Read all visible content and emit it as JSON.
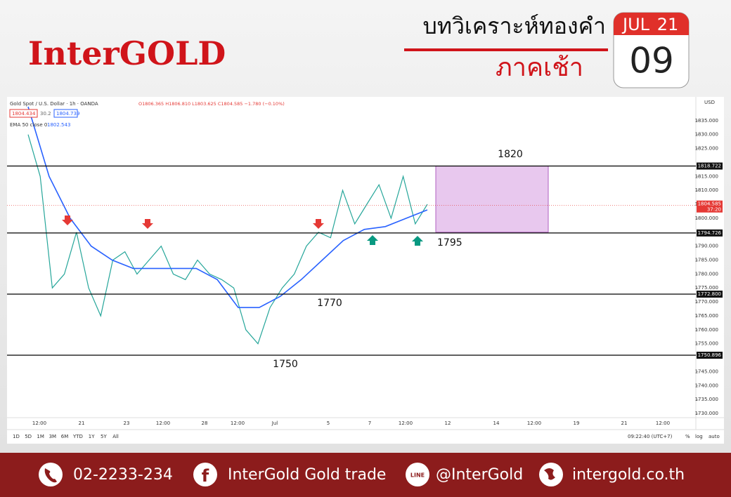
{
  "header": {
    "brand": "InterGOLD",
    "title": "บทวิเคราะห์ทองคำ",
    "subtitle": "ภาคเช้า",
    "calendar": {
      "month": "JUL",
      "year": "21",
      "day": "09"
    }
  },
  "chart_data": {
    "type": "line",
    "symbol": "Gold Spot / U.S. Dollar · 1h · OANDA",
    "ohlc": "O1806.365 H1806.810 L1803.625 C1804.585 −1.780 (−0.10%)",
    "bid": "1804.434",
    "spread": "30.2",
    "ask": "1804.739",
    "indicator": "EMA 50 close 0",
    "indicator_value": "1802.543",
    "currency": "USD",
    "series": [
      {
        "name": "Gold Spot",
        "color": "#26a69a",
        "values": [
          1830,
          1815,
          1775,
          1780,
          1795,
          1775,
          1765,
          1785,
          1788,
          1780,
          1785,
          1790,
          1780,
          1778,
          1785,
          1780,
          1778,
          1775,
          1760,
          1755,
          1768,
          1775,
          1780,
          1790,
          1795,
          1793,
          1810,
          1798,
          1805,
          1812,
          1800,
          1815,
          1798,
          1805
        ]
      },
      {
        "name": "EMA 50",
        "color": "#2962ff",
        "values": [
          1840,
          1815,
          1800,
          1790,
          1785,
          1782,
          1782,
          1782,
          1782,
          1778,
          1768,
          1768,
          1772,
          1778,
          1785,
          1792,
          1796,
          1797,
          1800,
          1803
        ]
      }
    ],
    "ylim": [
      1728.5,
      1840.5
    ],
    "yticks": [
      {
        "value": 1730,
        "label": "1730.000"
      },
      {
        "value": 1735,
        "label": "1735.000"
      },
      {
        "value": 1740,
        "label": "1740.000"
      },
      {
        "value": 1745,
        "label": "1745.000"
      },
      {
        "value": 1755,
        "label": "1755.000"
      },
      {
        "value": 1760,
        "label": "1760.000"
      },
      {
        "value": 1765,
        "label": "1765.000"
      },
      {
        "value": 1770,
        "label": "1770.000"
      },
      {
        "value": 1775,
        "label": "1775.000"
      },
      {
        "value": 1780,
        "label": "1780.000"
      },
      {
        "value": 1785,
        "label": "1785.000"
      },
      {
        "value": 1790,
        "label": "1790.000"
      },
      {
        "value": 1800,
        "label": "1800.000"
      },
      {
        "value": 1805,
        "label": "1805.000"
      },
      {
        "value": 1810,
        "label": "1810.000"
      },
      {
        "value": 1815,
        "label": "1815.000"
      },
      {
        "value": 1825,
        "label": "1825.000"
      },
      {
        "value": 1830,
        "label": "1830.000"
      },
      {
        "value": 1835,
        "label": "1835.000"
      }
    ],
    "xticks": [
      "12:00",
      "21",
      "23",
      "12:00",
      "28",
      "12:00",
      "Jul",
      "5",
      "7",
      "12:00",
      "12",
      "14",
      "12:00",
      "19",
      "21",
      "12:00"
    ],
    "levels": [
      {
        "value": 1818.722,
        "label": "1818.722"
      },
      {
        "value": 1794.726,
        "label": "1794.726"
      },
      {
        "value": 1772.8,
        "label": "1772.800"
      },
      {
        "value": 1750.896,
        "label": "1750.896"
      }
    ],
    "current_price": {
      "value": 1804.585,
      "label": "1804.585",
      "countdown": "37:20"
    },
    "zone": {
      "low": 1795,
      "high": 1818.722,
      "color": "#e8c8ee"
    },
    "annotations": [
      "1820",
      "1795",
      "1770",
      "1750"
    ],
    "toolbar": [
      "1D",
      "5D",
      "1M",
      "3M",
      "6M",
      "YTD",
      "1Y",
      "5Y",
      "All"
    ],
    "clock": "09:22:40 (UTC+7)",
    "options": [
      "%",
      "log",
      "auto"
    ]
  },
  "footer": {
    "phone": "02-2233-234",
    "facebook": "InterGold Gold trade",
    "line": "@InterGold",
    "web": "intergold.co.th"
  }
}
